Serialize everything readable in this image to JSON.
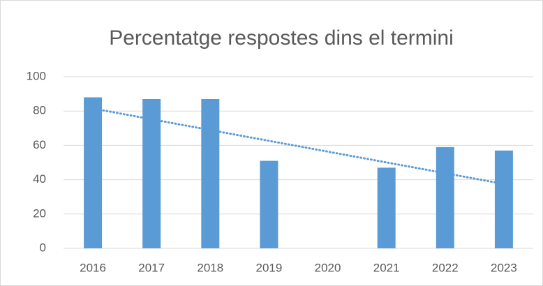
{
  "chart_data": {
    "type": "bar",
    "title": "Percentatge respostes dins el termini",
    "categories": [
      "2016",
      "2017",
      "2018",
      "2019",
      "2020",
      "2021",
      "2022",
      "2023"
    ],
    "values": [
      88,
      87,
      87,
      51,
      0,
      47,
      59,
      57
    ],
    "color": "#5b9bd5",
    "ylim": [
      0,
      100
    ],
    "yticks": [
      0,
      20,
      40,
      60,
      80,
      100
    ],
    "grid": true,
    "trendline": "linear"
  }
}
